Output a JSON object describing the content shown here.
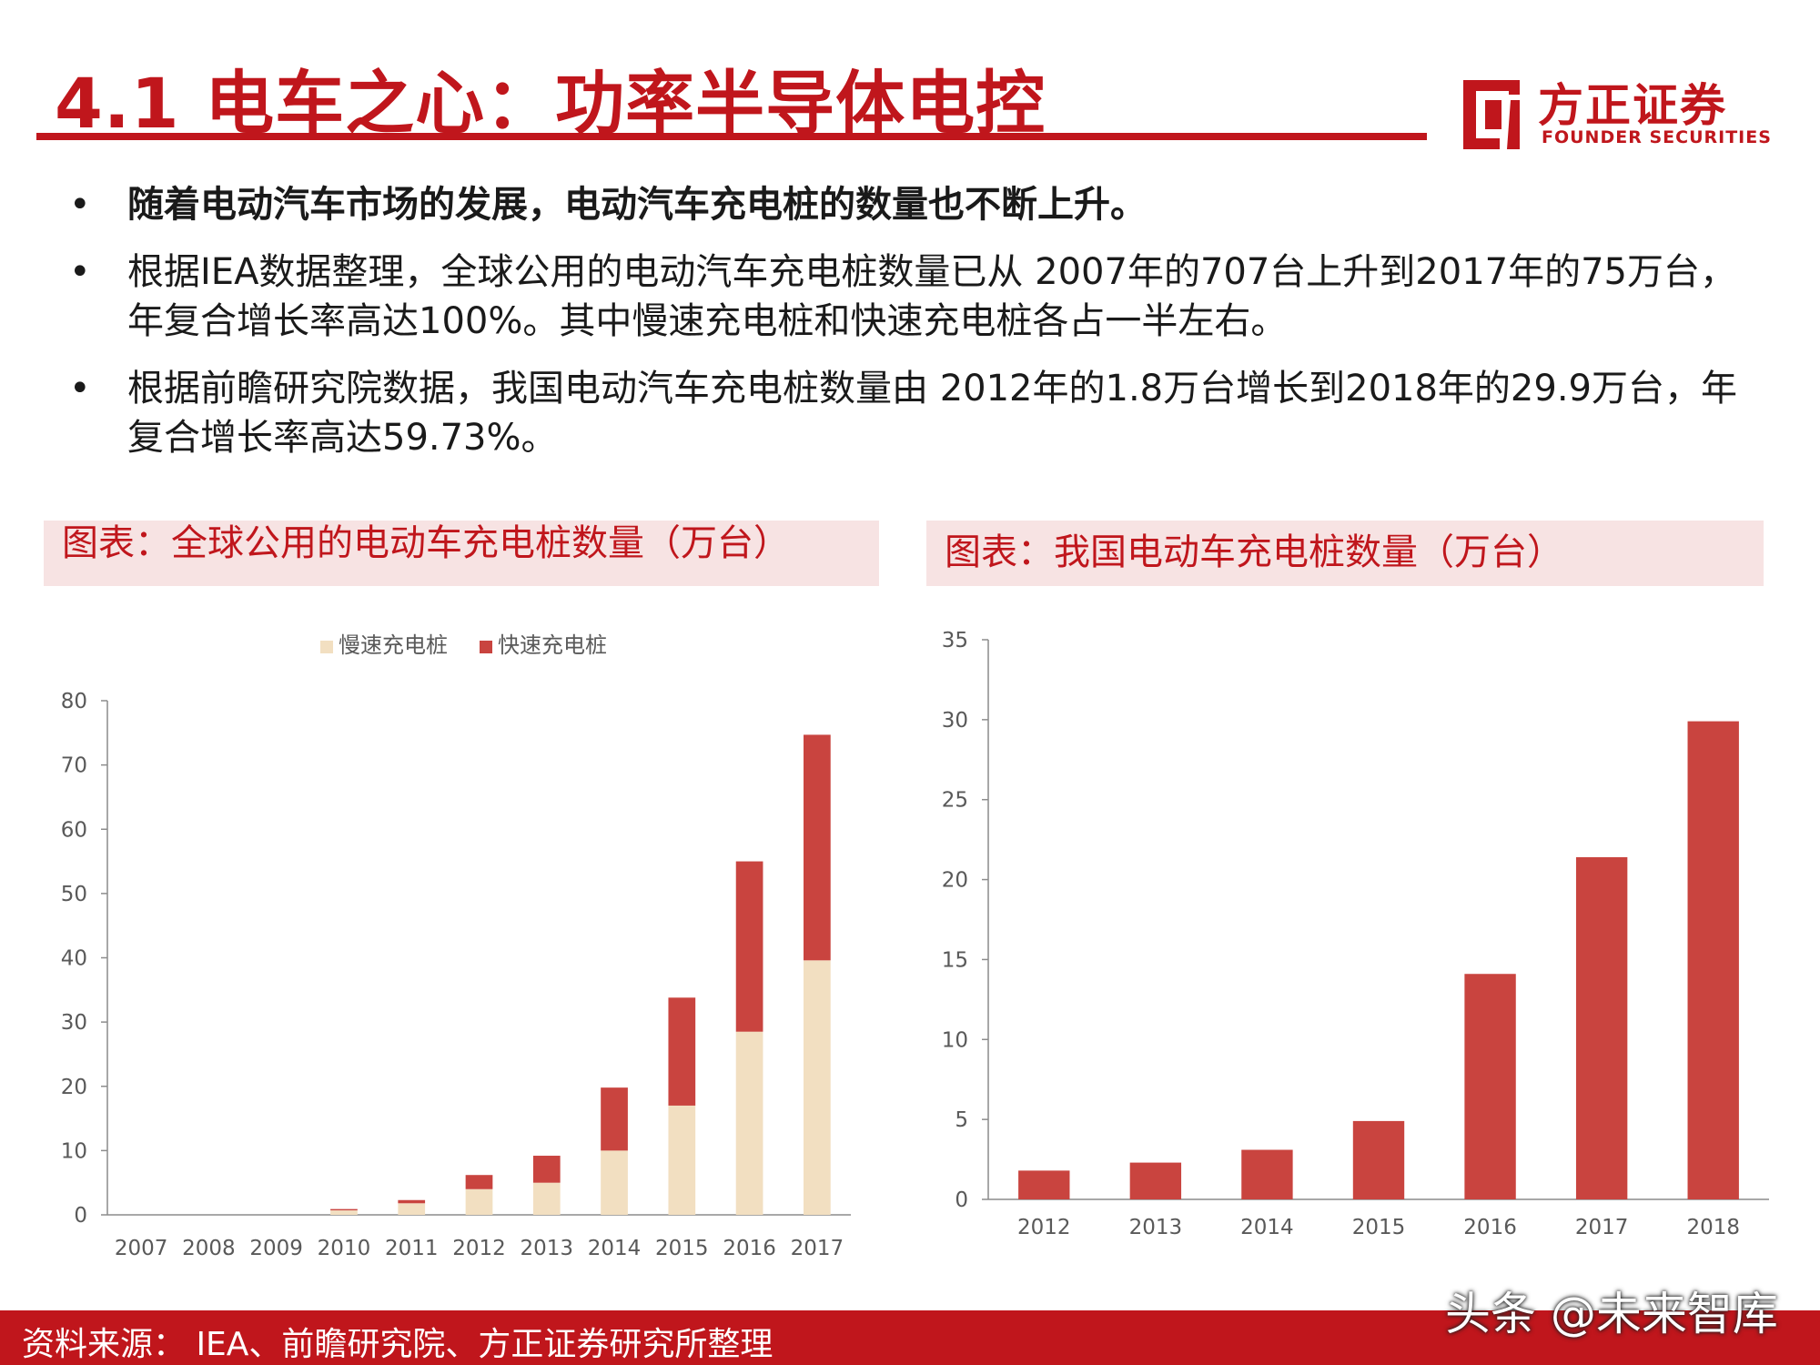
{
  "header": {
    "title": "4.1 电车之心：功率半导体电控",
    "logo_cn": "方正证券",
    "logo_en": "FOUNDER SECURITIES"
  },
  "bullets": [
    {
      "text": "随着电动汽车市场的发展，电动汽车充电桩的数量也不断上升。",
      "bold": true
    },
    {
      "text": "根据IEA数据整理，全球公用的电动汽车充电桩数量已从 2007年的707台上升到2017年的75万台，年复合增长率高达100%。其中慢速充电桩和快速充电桩各占一半左右。",
      "bold": false
    },
    {
      "text": "根据前瞻研究院数据，我国电动汽车充电桩数量由 2012年的1.8万台增长到2018年的29.9万台，年复合增长率高达59.73%。",
      "bold": false
    }
  ],
  "colors": {
    "brand_red": "#c0161c",
    "slow": "#f2dfc1",
    "fast": "#c9443f",
    "panel_bg": "#f7e3e3"
  },
  "footer": {
    "source": "资料来源： IEA、前瞻研究院、方正证券研究所整理",
    "watermark": "头条 @未来智库"
  },
  "chart_data": [
    {
      "title": "图表：全球公用的电动车充电桩数量（万台）",
      "type": "bar",
      "stacked": true,
      "categories": [
        "2007",
        "2008",
        "2009",
        "2010",
        "2011",
        "2012",
        "2013",
        "2014",
        "2015",
        "2016",
        "2017"
      ],
      "series": [
        {
          "name": "慢速充电桩",
          "values": [
            0,
            0,
            0,
            0.7,
            1.8,
            4.0,
            5.0,
            10.0,
            17.0,
            28.5,
            39.6
          ]
        },
        {
          "name": "快速充电桩",
          "values": [
            0,
            0,
            0,
            0.2,
            0.5,
            2.2,
            4.2,
            9.8,
            16.8,
            26.5,
            35.1
          ]
        }
      ],
      "ylim": [
        0,
        80
      ],
      "yticks": [
        0,
        10,
        20,
        30,
        40,
        50,
        60,
        70,
        80
      ],
      "legend": "top",
      "grid": false
    },
    {
      "title": "图表：我国电动车充电桩数量（万台）",
      "type": "bar",
      "categories": [
        "2012",
        "2013",
        "2014",
        "2015",
        "2016",
        "2017",
        "2018"
      ],
      "values": [
        1.8,
        2.3,
        3.1,
        4.9,
        14.1,
        21.4,
        29.9
      ],
      "ylim": [
        0,
        35
      ],
      "yticks": [
        0,
        5,
        10,
        15,
        20,
        25,
        30,
        35
      ],
      "grid": false
    }
  ]
}
